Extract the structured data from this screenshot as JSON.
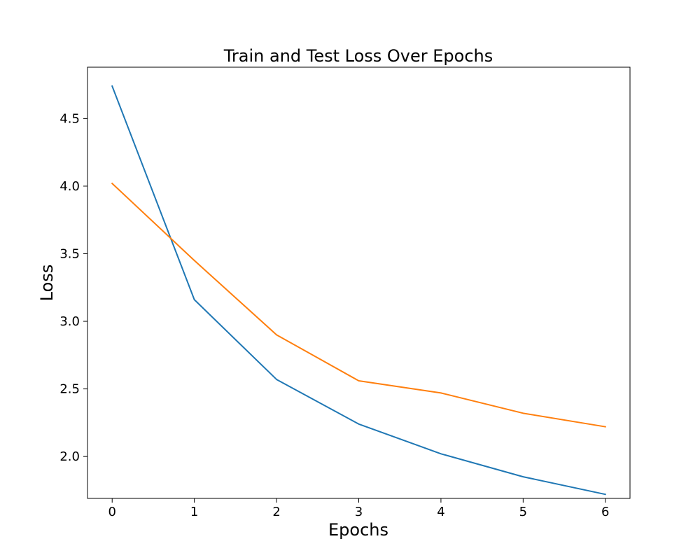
{
  "chart_data": {
    "type": "line",
    "title": "Train and Test Loss Over Epochs",
    "xlabel": "Epochs",
    "ylabel": "Loss",
    "x": [
      0,
      1,
      2,
      3,
      4,
      5,
      6
    ],
    "xlim": [
      -0.3,
      6.3
    ],
    "ylim": [
      1.69,
      4.88
    ],
    "xticks": [
      0,
      1,
      2,
      3,
      4,
      5,
      6
    ],
    "yticks": [
      2.0,
      2.5,
      3.0,
      3.5,
      4.0,
      4.5
    ],
    "xtick_labels": [
      "0",
      "1",
      "2",
      "3",
      "4",
      "5",
      "6"
    ],
    "ytick_labels": [
      "2.0",
      "2.5",
      "3.0",
      "3.5",
      "4.0",
      "4.5"
    ],
    "grid": false,
    "legend": "none",
    "series": [
      {
        "color": "#1f77b4",
        "values": [
          4.74,
          3.16,
          2.57,
          2.24,
          2.02,
          1.85,
          1.72
        ]
      },
      {
        "color": "#ff7f0e",
        "values": [
          4.02,
          3.45,
          2.9,
          2.56,
          2.47,
          2.32,
          2.22
        ]
      }
    ]
  }
}
